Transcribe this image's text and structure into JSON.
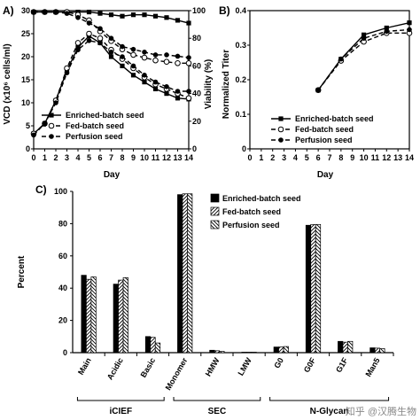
{
  "watermark": "知乎 @汉腾生物",
  "chart_data": [
    {
      "panel_label": "A)",
      "type": "line",
      "xlabel": "Day",
      "ylabel_left": "VCD (x10⁶ cells/ml)",
      "ylabel_right": "Viability (%)",
      "xlim": [
        0,
        14
      ],
      "ylim_left": [
        0,
        30
      ],
      "ylim_right": [
        0,
        100
      ],
      "x_ticks": [
        "0",
        "1",
        "2",
        "3",
        "4",
        "5",
        "6",
        "7",
        "8",
        "9",
        "10",
        "11",
        "12",
        "13",
        "14"
      ],
      "y_ticks_left": [
        "0",
        "5",
        "10",
        "15",
        "20",
        "25",
        "30"
      ],
      "y_ticks_right": [
        "0",
        "20",
        "40",
        "60",
        "80",
        "100"
      ],
      "legend": {
        "position": "bottom-left",
        "entries": [
          "Enriched-batch seed",
          "Fed-batch seed",
          "Perfusion seed"
        ]
      },
      "series": [
        {
          "name": "Enriched-batch seed",
          "marker": "square",
          "dash": "solid",
          "axis": "left",
          "x": [
            0,
            1,
            2,
            3,
            4,
            5,
            6,
            7,
            8,
            9,
            10,
            11,
            12,
            13,
            14
          ],
          "values": [
            3.3,
            5.5,
            10.5,
            17,
            22,
            24.5,
            23,
            20,
            18,
            16,
            14.5,
            13,
            12,
            11,
            10.8
          ]
        },
        {
          "name": "Fed-batch seed",
          "marker": "circle-open",
          "dash": "dashed",
          "axis": "left",
          "x": [
            0,
            1,
            2,
            3,
            4,
            5,
            6,
            7,
            8,
            9,
            10,
            11,
            12,
            13,
            14
          ],
          "values": [
            3.3,
            5.5,
            10.5,
            17.5,
            23,
            25,
            24,
            21.5,
            19.5,
            17.5,
            15.5,
            14,
            13,
            12,
            11
          ]
        },
        {
          "name": "Perfusion seed",
          "marker": "circle",
          "dash": "dashed",
          "axis": "left",
          "x": [
            0,
            1,
            2,
            3,
            4,
            5,
            6,
            7,
            8,
            9,
            10,
            11,
            12,
            13,
            14
          ],
          "values": [
            3,
            5.5,
            10,
            16.5,
            21.5,
            23.5,
            23,
            21,
            20,
            18,
            16,
            14.5,
            13.5,
            12.5,
            12.5
          ]
        },
        {
          "name": "Enriched-batch seed viability",
          "marker": "square",
          "dash": "solid",
          "axis": "right",
          "x": [
            0,
            1,
            2,
            3,
            4,
            5,
            6,
            7,
            8,
            9,
            10,
            11,
            12,
            13,
            14
          ],
          "values": [
            99,
            99,
            99,
            99,
            99,
            99,
            98,
            97,
            96,
            97,
            97,
            96,
            95,
            93,
            91
          ]
        },
        {
          "name": "Fed-batch seed viability",
          "marker": "circle-open",
          "dash": "dashed",
          "axis": "right",
          "x": [
            0,
            1,
            2,
            3,
            4,
            5,
            6,
            7,
            8,
            9,
            10,
            11,
            12,
            13,
            14
          ],
          "values": [
            99,
            99,
            99,
            99,
            97,
            93,
            85,
            78,
            72,
            68,
            66,
            64,
            63,
            62,
            62
          ]
        },
        {
          "name": "Perfusion seed viability",
          "marker": "circle",
          "dash": "dashed",
          "axis": "right",
          "x": [
            0,
            1,
            2,
            3,
            4,
            5,
            6,
            7,
            8,
            9,
            10,
            11,
            12,
            13,
            14
          ],
          "values": [
            99,
            99,
            99,
            98,
            95,
            91,
            87,
            80,
            74,
            72,
            70,
            68,
            68,
            67,
            66
          ]
        }
      ]
    },
    {
      "panel_label": "B)",
      "type": "line",
      "xlabel": "Day",
      "ylabel": "Normalized Titer",
      "xlim": [
        0,
        14
      ],
      "ylim": [
        0,
        0.4
      ],
      "x_ticks": [
        "0",
        "1",
        "2",
        "3",
        "4",
        "5",
        "6",
        "7",
        "8",
        "9",
        "10",
        "11",
        "12",
        "13",
        "14"
      ],
      "y_ticks": [
        "0",
        "0.1",
        "0.2",
        "0.3",
        "0.4"
      ],
      "legend": {
        "position": "bottom-right",
        "entries": [
          "Enriched-batch seed",
          "Fed-batch seed",
          "Perfusion seed"
        ]
      },
      "series": [
        {
          "name": "Enriched-batch seed",
          "marker": "square",
          "dash": "solid",
          "x": [
            6,
            8,
            10,
            12,
            14
          ],
          "values": [
            0.17,
            0.26,
            0.33,
            0.35,
            0.365
          ]
        },
        {
          "name": "Fed-batch seed",
          "marker": "circle-open",
          "dash": "dashed",
          "x": [
            6,
            8,
            10,
            12,
            14
          ],
          "values": [
            0.17,
            0.255,
            0.31,
            0.335,
            0.335
          ]
        },
        {
          "name": "Perfusion seed",
          "marker": "circle",
          "dash": "dashed",
          "x": [
            6,
            8,
            10,
            12,
            14
          ],
          "values": [
            0.17,
            0.26,
            0.32,
            0.34,
            0.345
          ]
        }
      ]
    },
    {
      "panel_label": "C)",
      "type": "bar",
      "ylabel": "Percent",
      "ylim": [
        0,
        100
      ],
      "y_ticks": [
        "0",
        "20",
        "40",
        "60",
        "80",
        "100"
      ],
      "categories": [
        "Main",
        "Acidic",
        "Basic",
        "Monomer",
        "HMW",
        "LMW",
        "G0",
        "G0F",
        "G1F",
        "Man5"
      ],
      "groups": [
        {
          "label": "iCIEF",
          "categories": [
            "Main",
            "Acidic",
            "Basic"
          ]
        },
        {
          "label": "SEC",
          "categories": [
            "Monomer",
            "HMW",
            "LMW"
          ]
        },
        {
          "label": "N-Glycan",
          "categories": [
            "G0",
            "G0F",
            "G1F",
            "Man5"
          ]
        }
      ],
      "legend": {
        "position": "top-left",
        "entries": [
          "Enriched-batch seed",
          "Fed-batch seed",
          "Perfusion seed"
        ]
      },
      "series": [
        {
          "name": "Enriched-batch seed",
          "fill": "solid",
          "values": [
            48,
            42.5,
            10,
            98,
            1.5,
            0.3,
            3.5,
            79,
            7,
            3
          ]
        },
        {
          "name": "Fed-batch seed",
          "fill": "diagonal-right",
          "values": [
            45.5,
            45,
            9.5,
            98.5,
            1.2,
            0.3,
            3.5,
            79.5,
            6.5,
            2.8
          ]
        },
        {
          "name": "Perfusion seed",
          "fill": "diagonal-left",
          "values": [
            47,
            46.5,
            6,
            98.5,
            0.8,
            0.3,
            3.8,
            79.5,
            7,
            2.5
          ]
        }
      ]
    }
  ]
}
